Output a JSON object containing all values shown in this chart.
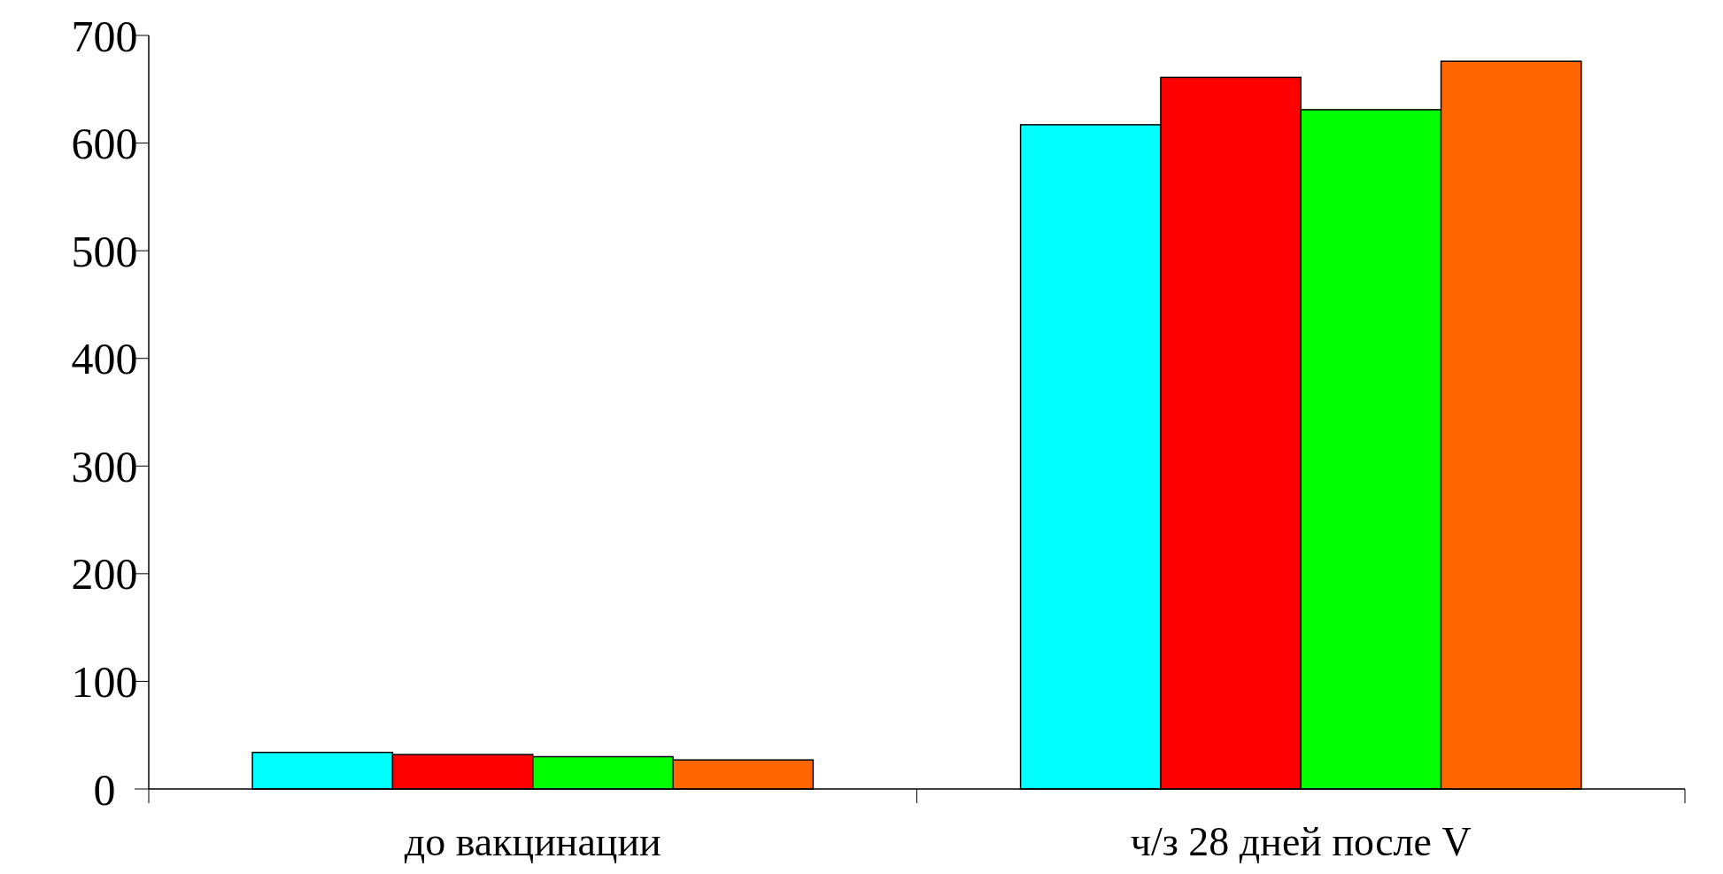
{
  "chart_data": {
    "type": "bar",
    "categories": [
      "до вакцинации",
      "ч/з 28 дней после V"
    ],
    "series": [
      {
        "color": "#00ffff",
        "values": [
          34,
          617
        ]
      },
      {
        "color": "#ff0000",
        "values": [
          32,
          661
        ]
      },
      {
        "color": "#00ff00",
        "values": [
          30,
          631
        ]
      },
      {
        "color": "#ff6600",
        "values": [
          27,
          676
        ]
      }
    ],
    "ylim": [
      0,
      700
    ],
    "yticks": [
      0,
      100,
      200,
      300,
      400,
      500,
      600,
      700
    ]
  }
}
